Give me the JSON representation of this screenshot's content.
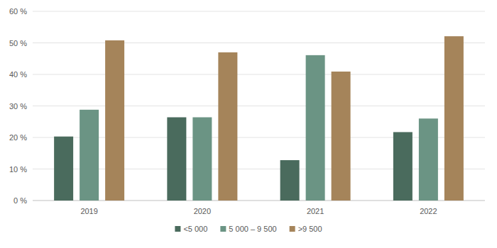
{
  "chart_data": {
    "type": "bar",
    "categories": [
      "2019",
      "2020",
      "2021",
      "2022"
    ],
    "series": [
      {
        "name": "<5 000",
        "color": "#4a6b5d",
        "values": [
          20.3,
          26.4,
          12.8,
          21.7
        ]
      },
      {
        "name": "5 000 – 9 500",
        "color": "#6b9484",
        "values": [
          28.8,
          26.4,
          46.1,
          26.0
        ]
      },
      {
        "name": ">9 500",
        "color": "#a5845a",
        "values": [
          50.8,
          47.0,
          40.9,
          52.1
        ]
      }
    ],
    "ylim": [
      0,
      60
    ],
    "yticks": [
      {
        "value": 0,
        "label": "0 %"
      },
      {
        "value": 10,
        "label": "10 %"
      },
      {
        "value": 20,
        "label": "20 %"
      },
      {
        "value": 30,
        "label": "30 %"
      },
      {
        "value": 40,
        "label": "40 %"
      },
      {
        "value": 50,
        "label": "50 %"
      },
      {
        "value": 60,
        "label": "60 %"
      }
    ],
    "grid": true,
    "legend": "bottom"
  }
}
